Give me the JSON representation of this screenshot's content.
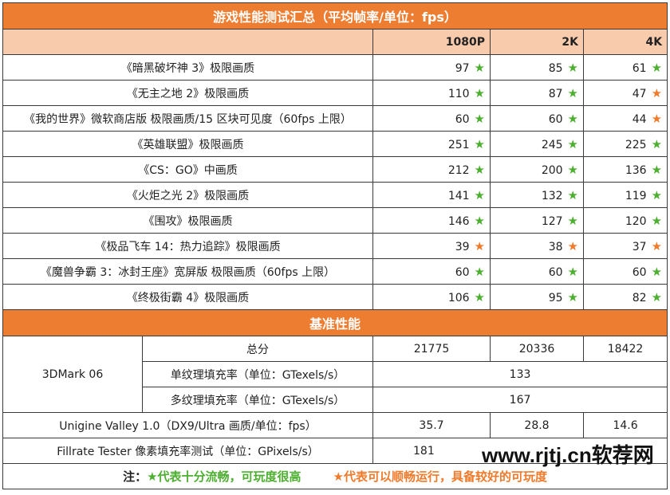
{
  "title": "游戏性能测试汇总（平均帧率/单位：fps）",
  "columns": [
    "1080P",
    "2K",
    "4K"
  ],
  "colors": {
    "accent": "#ed7d31",
    "header_bg": "#f8cbad",
    "star_green": "#4caf2f",
    "star_orange": "#f07a2a"
  },
  "games": [
    {
      "name": "《暗黑破坏神 3》极限画质",
      "v": [
        "97",
        "85",
        "61"
      ],
      "s": [
        "g",
        "g",
        "g"
      ]
    },
    {
      "name": "《无主之地 2》极限画质",
      "v": [
        "110",
        "87",
        "47"
      ],
      "s": [
        "g",
        "g",
        "o"
      ]
    },
    {
      "name": "《我的世界》微软商店版 极限画质/15 区块可见度（60fps 上限）",
      "v": [
        "60",
        "60",
        "44"
      ],
      "s": [
        "g",
        "g",
        "o"
      ]
    },
    {
      "name": "《英雄联盟》极限画质",
      "v": [
        "251",
        "245",
        "225"
      ],
      "s": [
        "g",
        "g",
        "g"
      ]
    },
    {
      "name": "《CS：GO》中画质",
      "v": [
        "212",
        "200",
        "136"
      ],
      "s": [
        "g",
        "g",
        "g"
      ]
    },
    {
      "name": "《火炬之光 2》极限画质",
      "v": [
        "141",
        "132",
        "119"
      ],
      "s": [
        "g",
        "g",
        "g"
      ]
    },
    {
      "name": "《围攻》极限画质",
      "v": [
        "146",
        "127",
        "120"
      ],
      "s": [
        "g",
        "g",
        "g"
      ]
    },
    {
      "name": "《极品飞车 14：热力追踪》极限画质",
      "v": [
        "39",
        "38",
        "37"
      ],
      "s": [
        "o",
        "o",
        "o"
      ]
    },
    {
      "name": "《魔兽争霸 3：冰封王座》宽屏版 极限画质（60fps 上限）",
      "v": [
        "60",
        "60",
        "60"
      ],
      "s": [
        "g",
        "g",
        "g"
      ]
    },
    {
      "name": "《终极街霸 4》极限画质",
      "v": [
        "106",
        "95",
        "82"
      ],
      "s": [
        "g",
        "g",
        "g"
      ]
    }
  ],
  "star": "★",
  "bench": {
    "title": "基准性能",
    "mark": "3DMark 06",
    "total_label": "总分",
    "total": [
      "21775",
      "20336",
      "18422"
    ],
    "single_label": "单纹理填充率（单位：GTexels/s）",
    "single": "133",
    "multi_label": "多纹理填充率（单位：GTexels/s）",
    "multi": "167",
    "unigine_label": "Unigine Valley 1.0（DX9/Ultra 画质/单位：fps）",
    "unigine": [
      "35.7",
      "28.8",
      "14.6"
    ],
    "fillrate_label": "Fillrate Tester 像素填充率测试（单位：GPixels/s）",
    "fillrate": "181"
  },
  "note": {
    "prefix": "注：",
    "green": "★代表十分流畅，可玩度很高",
    "orange": "★代表可以顺畅运行，具备较好的可玩度"
  },
  "watermark": "www.rjtj.cn软荐网"
}
